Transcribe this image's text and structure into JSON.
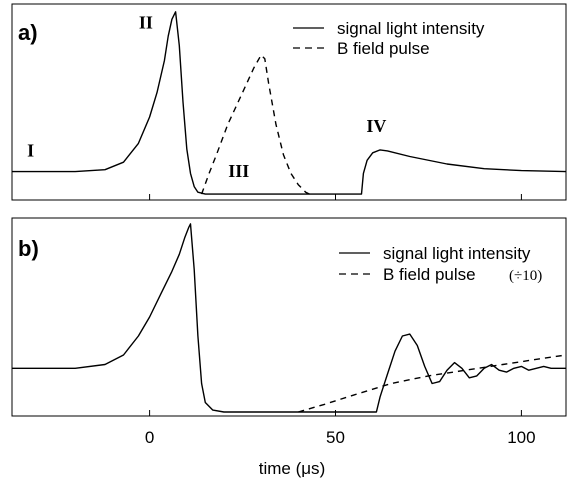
{
  "figure": {
    "xlabel_text": "time (",
    "xlabel_unit": "μs",
    "xlabel_close": ")"
  },
  "chart_data": [
    {
      "panel": "a",
      "panel_label": "a)",
      "type": "line",
      "xlim": [
        -37,
        112
      ],
      "ylim": [
        0,
        1
      ],
      "tick_values": [
        0,
        50,
        100
      ],
      "tick_labels": [
        "0",
        "50",
        "100"
      ],
      "tick_labels_visible": false,
      "series": [
        {
          "name": "signal light intensity",
          "style": "solid",
          "color": "#000000",
          "points": [
            [
              -37,
              0.13
            ],
            [
              -20,
              0.13
            ],
            [
              -12,
              0.14
            ],
            [
              -7,
              0.18
            ],
            [
              -3,
              0.28
            ],
            [
              0,
              0.42
            ],
            [
              2,
              0.55
            ],
            [
              4,
              0.72
            ],
            [
              5,
              0.85
            ],
            [
              6,
              0.94
            ],
            [
              7,
              0.98
            ],
            [
              8,
              0.8
            ],
            [
              9,
              0.5
            ],
            [
              10,
              0.25
            ],
            [
              11,
              0.12
            ],
            [
              12,
              0.05
            ],
            [
              13,
              0.02
            ],
            [
              15,
              0.01
            ],
            [
              30,
              0.01
            ],
            [
              45,
              0.01
            ],
            [
              57,
              0.01
            ],
            [
              57.5,
              0.12
            ],
            [
              58.5,
              0.19
            ],
            [
              60,
              0.23
            ],
            [
              62,
              0.245
            ],
            [
              64,
              0.24
            ],
            [
              70,
              0.21
            ],
            [
              80,
              0.17
            ],
            [
              90,
              0.145
            ],
            [
              100,
              0.135
            ],
            [
              112,
              0.13
            ]
          ]
        },
        {
          "name": "B field pulse",
          "style": "dashed",
          "color": "#000000",
          "points": [
            [
              14,
              0.01
            ],
            [
              16,
              0.12
            ],
            [
              18,
              0.22
            ],
            [
              21,
              0.38
            ],
            [
              25,
              0.55
            ],
            [
              28,
              0.68
            ],
            [
              30,
              0.75
            ],
            [
              31,
              0.73
            ],
            [
              32,
              0.6
            ],
            [
              34,
              0.38
            ],
            [
              36,
              0.22
            ],
            [
              38,
              0.12
            ],
            [
              40,
              0.06
            ],
            [
              42,
              0.02
            ],
            [
              44,
              0.0
            ]
          ]
        }
      ],
      "annotations": [
        {
          "text": "I",
          "x": -32,
          "y": 0.21
        },
        {
          "text": "II",
          "x": -1,
          "y": 0.89
        },
        {
          "text": "III",
          "x": 24,
          "y": 0.1
        },
        {
          "text": "IV",
          "x": 61,
          "y": 0.34
        }
      ],
      "legend": {
        "position": "top-right",
        "entries": [
          {
            "label": "signal light intensity",
            "style": "solid"
          },
          {
            "label": "B field pulse",
            "style": "dashed"
          }
        ]
      }
    },
    {
      "panel": "b",
      "panel_label": "b)",
      "type": "line",
      "xlim": [
        -37,
        112
      ],
      "ylim": [
        0,
        1
      ],
      "tick_values": [
        0,
        50,
        100
      ],
      "tick_labels": [
        "0",
        "50",
        "100"
      ],
      "tick_labels_visible": true,
      "series": [
        {
          "name": "signal light intensity",
          "style": "solid",
          "color": "#000000",
          "points": [
            [
              -37,
              0.23
            ],
            [
              -20,
              0.23
            ],
            [
              -12,
              0.25
            ],
            [
              -7,
              0.3
            ],
            [
              -3,
              0.4
            ],
            [
              0,
              0.5
            ],
            [
              3,
              0.62
            ],
            [
              6,
              0.74
            ],
            [
              8,
              0.83
            ],
            [
              9.5,
              0.92
            ],
            [
              10.5,
              0.97
            ],
            [
              11,
              0.99
            ],
            [
              12,
              0.75
            ],
            [
              13,
              0.4
            ],
            [
              14,
              0.15
            ],
            [
              15,
              0.05
            ],
            [
              17,
              0.01
            ],
            [
              20,
              0.0
            ],
            [
              30,
              0.0
            ],
            [
              45,
              0.0
            ],
            [
              60,
              0.0
            ],
            [
              61,
              0.0
            ],
            [
              62,
              0.08
            ],
            [
              64,
              0.2
            ],
            [
              66,
              0.32
            ],
            [
              68,
              0.4
            ],
            [
              70,
              0.41
            ],
            [
              72,
              0.35
            ],
            [
              74,
              0.24
            ],
            [
              76,
              0.15
            ],
            [
              78,
              0.16
            ],
            [
              80,
              0.22
            ],
            [
              82,
              0.26
            ],
            [
              84,
              0.23
            ],
            [
              86,
              0.18
            ],
            [
              88,
              0.19
            ],
            [
              90,
              0.23
            ],
            [
              92,
              0.25
            ],
            [
              94,
              0.22
            ],
            [
              96,
              0.21
            ],
            [
              98,
              0.23
            ],
            [
              100,
              0.24
            ],
            [
              102,
              0.22
            ],
            [
              104,
              0.23
            ],
            [
              106,
              0.24
            ],
            [
              108,
              0.23
            ],
            [
              112,
              0.23
            ]
          ]
        },
        {
          "name": "B field pulse",
          "legend_suffix": "(÷10)",
          "style": "dashed",
          "color": "#000000",
          "points": [
            [
              40,
              0.0
            ],
            [
              47,
              0.04
            ],
            [
              55,
              0.09
            ],
            [
              65,
              0.15
            ],
            [
              75,
              0.19
            ],
            [
              85,
              0.22
            ],
            [
              95,
              0.25
            ],
            [
              105,
              0.28
            ],
            [
              112,
              0.3
            ]
          ]
        }
      ],
      "legend": {
        "position": "top-right",
        "entries": [
          {
            "label": "signal light intensity",
            "style": "solid"
          },
          {
            "label": "B field pulse",
            "style": "dashed",
            "suffix": "(÷10)"
          }
        ]
      }
    }
  ]
}
